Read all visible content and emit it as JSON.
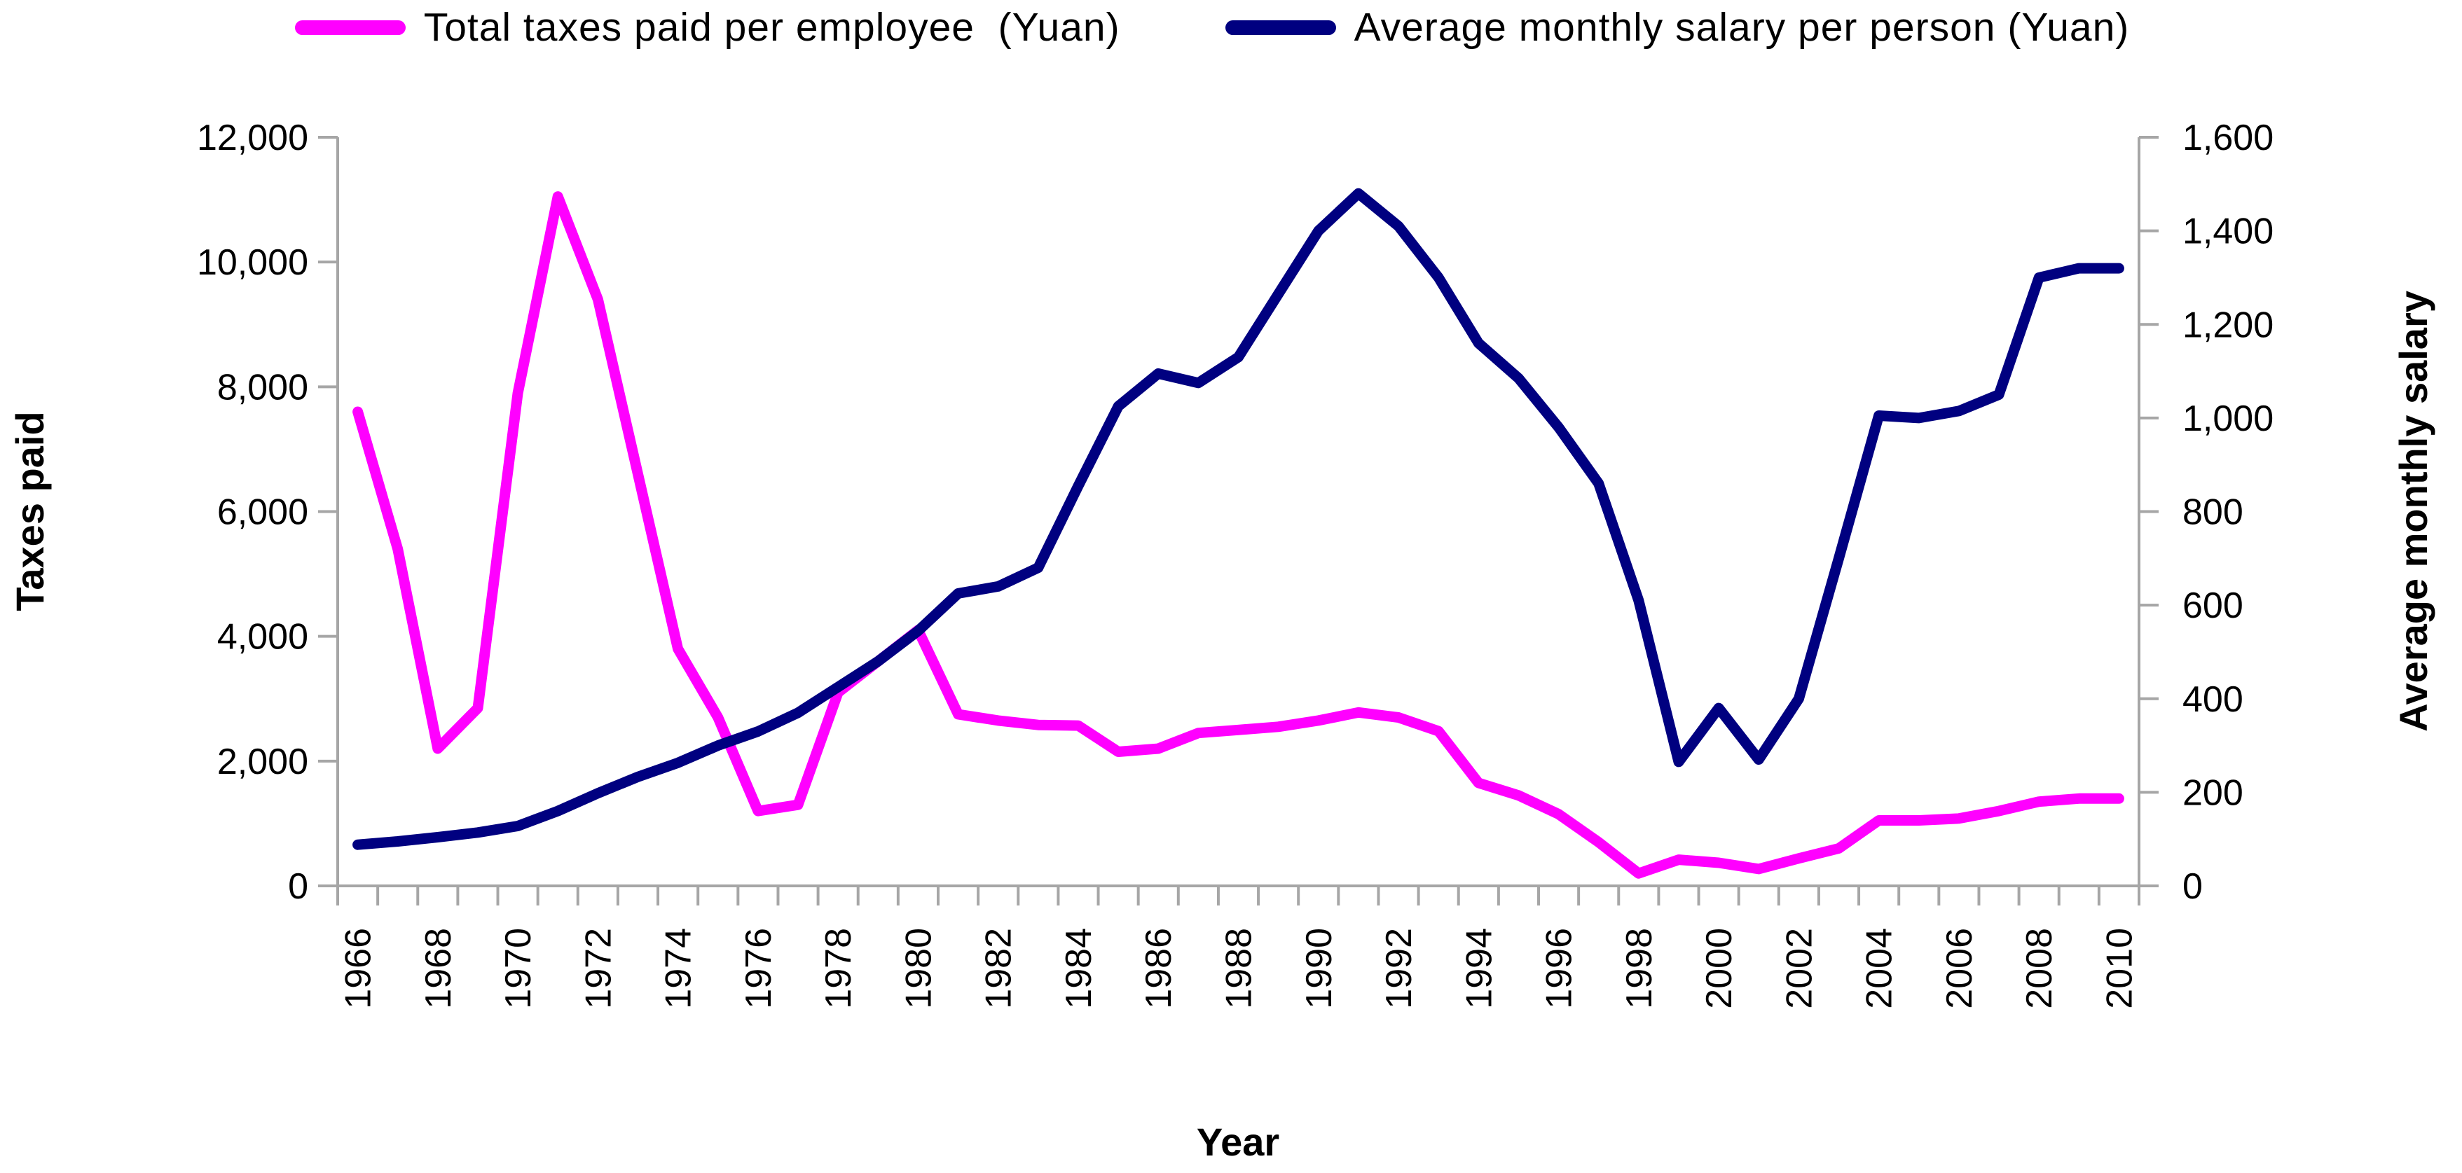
{
  "page": {
    "background": "#FFFFFF",
    "accent_pink": "#FF00FF",
    "accent_navy": "#000080",
    "axis_color": "#A6A6A6",
    "text_color": "#000000"
  },
  "legend": {
    "items": [
      {
        "label": "Total taxes paid per employee  (Yuan)",
        "color": "#FF00FF"
      },
      {
        "label": "Average monthly salary per person (Yuan)",
        "color": "#000080"
      }
    ]
  },
  "chart_data": {
    "type": "line",
    "title": "",
    "xlabel": "Year",
    "grid": false,
    "legend_position": "top",
    "x": [
      1966,
      1967,
      1968,
      1969,
      1970,
      1971,
      1972,
      1973,
      1974,
      1975,
      1976,
      1977,
      1978,
      1979,
      1980,
      1981,
      1982,
      1983,
      1984,
      1985,
      1986,
      1987,
      1988,
      1989,
      1990,
      1991,
      1992,
      1993,
      1994,
      1995,
      1996,
      1997,
      1998,
      1999,
      2000,
      2001,
      2002,
      2003,
      2004,
      2005,
      2006,
      2007,
      2008,
      2009,
      2010
    ],
    "x_tick_labels": [
      "1966",
      "1968",
      "1970",
      "1972",
      "1974",
      "1976",
      "1978",
      "1980",
      "1982",
      "1984",
      "1986",
      "1988",
      "1990",
      "1992",
      "1994",
      "1996",
      "1998",
      "2000",
      "2002",
      "2004",
      "2006",
      "2008",
      "2010"
    ],
    "left_axis": {
      "label": "Taxes paid",
      "min": 0,
      "max": 12000,
      "tick_interval": 2000,
      "tick_labels": [
        "0",
        "2,000",
        "4,000",
        "6,000",
        "8,000",
        "10,000",
        "12,000"
      ]
    },
    "right_axis": {
      "label": "Average monthly salary",
      "min": 0,
      "max": 1600,
      "tick_interval": 200,
      "tick_labels": [
        "0",
        "200",
        "400",
        "600",
        "800",
        "1,000",
        "1,200",
        "1,400",
        "1,600"
      ]
    },
    "series": [
      {
        "name": "Total taxes paid per employee  (Yuan)",
        "axis": "left",
        "color": "#FF00FF",
        "values": [
          7600,
          5400,
          2200,
          2850,
          7900,
          11050,
          9400,
          6600,
          3800,
          2700,
          1200,
          1300,
          3100,
          3600,
          4100,
          2750,
          2650,
          2580,
          2570,
          2150,
          2200,
          2450,
          2500,
          2550,
          2650,
          2780,
          2700,
          2480,
          1650,
          1450,
          1150,
          700,
          200,
          420,
          370,
          270,
          440,
          600,
          1050,
          1050,
          1080,
          1200,
          1350,
          1400,
          1400
        ]
      },
      {
        "name": "Average monthly salary per person (Yuan)",
        "axis": "right",
        "color": "#000080",
        "values": [
          88,
          95,
          104,
          114,
          128,
          160,
          198,
          233,
          263,
          300,
          330,
          370,
          425,
          480,
          545,
          625,
          640,
          680,
          855,
          1025,
          1095,
          1075,
          1130,
          1265,
          1400,
          1480,
          1410,
          1300,
          1160,
          1085,
          980,
          860,
          610,
          265,
          380,
          270,
          400,
          700,
          1005,
          1000,
          1015,
          1050,
          1300,
          1320,
          1320
        ]
      }
    ]
  }
}
